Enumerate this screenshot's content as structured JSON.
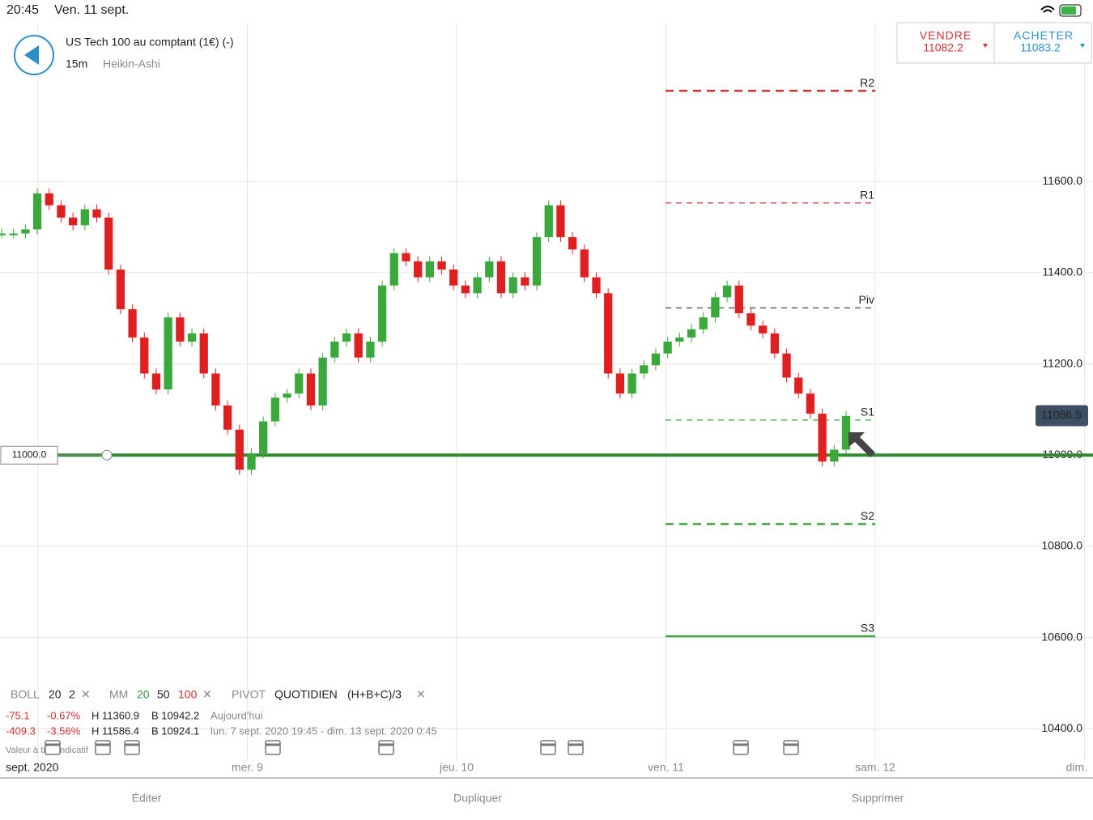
{
  "status": {
    "time": "20:45",
    "date": "Ven. 11 sept."
  },
  "header": {
    "title": "US Tech 100 au comptant (1€) (-)",
    "interval": "15m",
    "chart_style": "Heikin-Ashi"
  },
  "quote": {
    "sell_label": "VENDRE",
    "sell_price": "11082.2",
    "buy_label": "ACHETER",
    "buy_price": "11083.2"
  },
  "chart_data": {
    "type": "candlestick",
    "values": [
      11486,
      11486,
      11495,
      11574,
      11548,
      11521,
      11504,
      11539,
      11521,
      11407,
      11320,
      11258,
      11179,
      11144,
      11302,
      11249,
      11267,
      11179,
      11109,
      11056,
      10968,
      11004,
      11074,
      11126,
      11135,
      11179,
      11109,
      11214,
      11249,
      11267,
      11214,
      11249,
      11372,
      11443,
      11425,
      11390,
      11425,
      11407,
      11372,
      11355,
      11390,
      11425,
      11355,
      11390,
      11372,
      11478,
      11548,
      11478,
      11451,
      11390,
      11355,
      11179,
      11135,
      11179,
      11197,
      11223,
      11249,
      11258,
      11276,
      11302,
      11346,
      11372,
      11311,
      11284,
      11267,
      11223,
      11170,
      11135,
      11091,
      10986,
      11012,
      11086
    ],
    "up_color": "#3aa83a",
    "down_color": "#e02020",
    "ylim": [
      10200,
      11998
    ],
    "yticks": [
      {
        "value": 10400,
        "label": "10400.0"
      },
      {
        "value": 10600,
        "label": "10600.0"
      },
      {
        "value": 10800,
        "label": "10800.0"
      },
      {
        "value": 11000,
        "label": "11000.0"
      },
      {
        "value": 11200,
        "label": "11200.0"
      },
      {
        "value": 11400,
        "label": "11400.0"
      },
      {
        "value": 11600,
        "label": "11600.0"
      }
    ],
    "grid": true,
    "xlabels": [
      "sept. 2020",
      "mer. 9",
      "jeu. 10",
      "ven. 11",
      "sam. 12",
      "dim."
    ],
    "levels": [
      {
        "label": "R2",
        "value": 11799,
        "color": "#d32f2f",
        "dashed": true,
        "bold": true
      },
      {
        "label": "R1",
        "value": 11553,
        "color": "#d32f2f",
        "dashed": true,
        "bold": false
      },
      {
        "label": "Piv",
        "value": 11323,
        "color": "#333333",
        "dashed": true,
        "bold": false
      },
      {
        "label": "S1",
        "value": 11077,
        "color": "#3aa83a",
        "dashed": true,
        "bold": false
      },
      {
        "label": "S2",
        "value": 10849,
        "color": "#3aa83a",
        "dashed": true,
        "bold": true
      },
      {
        "label": "S3",
        "value": 10603,
        "color": "#3aa83a",
        "dashed": false,
        "bold": true
      }
    ],
    "alert_line": {
      "value": 11000,
      "label": "11000.0",
      "color": "#2e8b2e"
    },
    "last_price": {
      "value": 11086.5,
      "label": "11086.5"
    }
  },
  "indicators": {
    "boll": {
      "name": "BOLL",
      "period": "20",
      "dev": "2"
    },
    "mm": {
      "name": "MM",
      "p1": "20",
      "p2": "50",
      "p3": "100"
    },
    "pivot": {
      "name": "PIVOT",
      "mode": "QUOTIDIEN",
      "formula": "(H+B+C)/3"
    }
  },
  "stats": [
    {
      "change": "-75.1",
      "pct": "-0.67%",
      "high": "H 11360.9",
      "low": "B 10942.2",
      "period": "Aujourd'hui"
    },
    {
      "change": "-409.3",
      "pct": "-3.56%",
      "high": "H 11586.4",
      "low": "B 10924.1",
      "period": "lun. 7 sept. 2020 19:45 - dim. 13 sept. 2020 0:45"
    }
  ],
  "note": "Valeur à titre indicatif",
  "toolbar": {
    "edit": "Éditer",
    "duplicate": "Dupliquer",
    "delete": "Supprimer"
  }
}
